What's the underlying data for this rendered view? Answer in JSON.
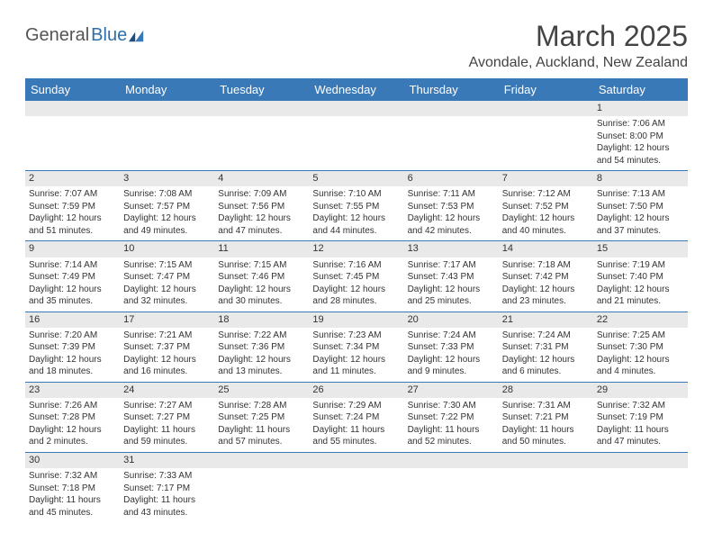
{
  "brand": {
    "part1": "General",
    "part2": "Blue"
  },
  "title": "March 2025",
  "location": "Avondale, Auckland, New Zealand",
  "colors": {
    "header_bg": "#3a79b7",
    "header_text": "#ffffff",
    "daynum_bg": "#e9e9e9",
    "row_border": "#3a79b7",
    "brand_blue": "#2f6fa8",
    "text": "#333333",
    "background": "#ffffff"
  },
  "typography": {
    "title_fontsize": 32,
    "location_fontsize": 16,
    "header_fontsize": 13,
    "daynum_fontsize": 11,
    "body_fontsize": 10
  },
  "weekdays": [
    "Sunday",
    "Monday",
    "Tuesday",
    "Wednesday",
    "Thursday",
    "Friday",
    "Saturday"
  ],
  "weeks": [
    [
      null,
      null,
      null,
      null,
      null,
      null,
      {
        "n": "1",
        "sunrise": "Sunrise: 7:06 AM",
        "sunset": "Sunset: 8:00 PM",
        "day1": "Daylight: 12 hours",
        "day2": "and 54 minutes."
      }
    ],
    [
      {
        "n": "2",
        "sunrise": "Sunrise: 7:07 AM",
        "sunset": "Sunset: 7:59 PM",
        "day1": "Daylight: 12 hours",
        "day2": "and 51 minutes."
      },
      {
        "n": "3",
        "sunrise": "Sunrise: 7:08 AM",
        "sunset": "Sunset: 7:57 PM",
        "day1": "Daylight: 12 hours",
        "day2": "and 49 minutes."
      },
      {
        "n": "4",
        "sunrise": "Sunrise: 7:09 AM",
        "sunset": "Sunset: 7:56 PM",
        "day1": "Daylight: 12 hours",
        "day2": "and 47 minutes."
      },
      {
        "n": "5",
        "sunrise": "Sunrise: 7:10 AM",
        "sunset": "Sunset: 7:55 PM",
        "day1": "Daylight: 12 hours",
        "day2": "and 44 minutes."
      },
      {
        "n": "6",
        "sunrise": "Sunrise: 7:11 AM",
        "sunset": "Sunset: 7:53 PM",
        "day1": "Daylight: 12 hours",
        "day2": "and 42 minutes."
      },
      {
        "n": "7",
        "sunrise": "Sunrise: 7:12 AM",
        "sunset": "Sunset: 7:52 PM",
        "day1": "Daylight: 12 hours",
        "day2": "and 40 minutes."
      },
      {
        "n": "8",
        "sunrise": "Sunrise: 7:13 AM",
        "sunset": "Sunset: 7:50 PM",
        "day1": "Daylight: 12 hours",
        "day2": "and 37 minutes."
      }
    ],
    [
      {
        "n": "9",
        "sunrise": "Sunrise: 7:14 AM",
        "sunset": "Sunset: 7:49 PM",
        "day1": "Daylight: 12 hours",
        "day2": "and 35 minutes."
      },
      {
        "n": "10",
        "sunrise": "Sunrise: 7:15 AM",
        "sunset": "Sunset: 7:47 PM",
        "day1": "Daylight: 12 hours",
        "day2": "and 32 minutes."
      },
      {
        "n": "11",
        "sunrise": "Sunrise: 7:15 AM",
        "sunset": "Sunset: 7:46 PM",
        "day1": "Daylight: 12 hours",
        "day2": "and 30 minutes."
      },
      {
        "n": "12",
        "sunrise": "Sunrise: 7:16 AM",
        "sunset": "Sunset: 7:45 PM",
        "day1": "Daylight: 12 hours",
        "day2": "and 28 minutes."
      },
      {
        "n": "13",
        "sunrise": "Sunrise: 7:17 AM",
        "sunset": "Sunset: 7:43 PM",
        "day1": "Daylight: 12 hours",
        "day2": "and 25 minutes."
      },
      {
        "n": "14",
        "sunrise": "Sunrise: 7:18 AM",
        "sunset": "Sunset: 7:42 PM",
        "day1": "Daylight: 12 hours",
        "day2": "and 23 minutes."
      },
      {
        "n": "15",
        "sunrise": "Sunrise: 7:19 AM",
        "sunset": "Sunset: 7:40 PM",
        "day1": "Daylight: 12 hours",
        "day2": "and 21 minutes."
      }
    ],
    [
      {
        "n": "16",
        "sunrise": "Sunrise: 7:20 AM",
        "sunset": "Sunset: 7:39 PM",
        "day1": "Daylight: 12 hours",
        "day2": "and 18 minutes."
      },
      {
        "n": "17",
        "sunrise": "Sunrise: 7:21 AM",
        "sunset": "Sunset: 7:37 PM",
        "day1": "Daylight: 12 hours",
        "day2": "and 16 minutes."
      },
      {
        "n": "18",
        "sunrise": "Sunrise: 7:22 AM",
        "sunset": "Sunset: 7:36 PM",
        "day1": "Daylight: 12 hours",
        "day2": "and 13 minutes."
      },
      {
        "n": "19",
        "sunrise": "Sunrise: 7:23 AM",
        "sunset": "Sunset: 7:34 PM",
        "day1": "Daylight: 12 hours",
        "day2": "and 11 minutes."
      },
      {
        "n": "20",
        "sunrise": "Sunrise: 7:24 AM",
        "sunset": "Sunset: 7:33 PM",
        "day1": "Daylight: 12 hours",
        "day2": "and 9 minutes."
      },
      {
        "n": "21",
        "sunrise": "Sunrise: 7:24 AM",
        "sunset": "Sunset: 7:31 PM",
        "day1": "Daylight: 12 hours",
        "day2": "and 6 minutes."
      },
      {
        "n": "22",
        "sunrise": "Sunrise: 7:25 AM",
        "sunset": "Sunset: 7:30 PM",
        "day1": "Daylight: 12 hours",
        "day2": "and 4 minutes."
      }
    ],
    [
      {
        "n": "23",
        "sunrise": "Sunrise: 7:26 AM",
        "sunset": "Sunset: 7:28 PM",
        "day1": "Daylight: 12 hours",
        "day2": "and 2 minutes."
      },
      {
        "n": "24",
        "sunrise": "Sunrise: 7:27 AM",
        "sunset": "Sunset: 7:27 PM",
        "day1": "Daylight: 11 hours",
        "day2": "and 59 minutes."
      },
      {
        "n": "25",
        "sunrise": "Sunrise: 7:28 AM",
        "sunset": "Sunset: 7:25 PM",
        "day1": "Daylight: 11 hours",
        "day2": "and 57 minutes."
      },
      {
        "n": "26",
        "sunrise": "Sunrise: 7:29 AM",
        "sunset": "Sunset: 7:24 PM",
        "day1": "Daylight: 11 hours",
        "day2": "and 55 minutes."
      },
      {
        "n": "27",
        "sunrise": "Sunrise: 7:30 AM",
        "sunset": "Sunset: 7:22 PM",
        "day1": "Daylight: 11 hours",
        "day2": "and 52 minutes."
      },
      {
        "n": "28",
        "sunrise": "Sunrise: 7:31 AM",
        "sunset": "Sunset: 7:21 PM",
        "day1": "Daylight: 11 hours",
        "day2": "and 50 minutes."
      },
      {
        "n": "29",
        "sunrise": "Sunrise: 7:32 AM",
        "sunset": "Sunset: 7:19 PM",
        "day1": "Daylight: 11 hours",
        "day2": "and 47 minutes."
      }
    ],
    [
      {
        "n": "30",
        "sunrise": "Sunrise: 7:32 AM",
        "sunset": "Sunset: 7:18 PM",
        "day1": "Daylight: 11 hours",
        "day2": "and 45 minutes."
      },
      {
        "n": "31",
        "sunrise": "Sunrise: 7:33 AM",
        "sunset": "Sunset: 7:17 PM",
        "day1": "Daylight: 11 hours",
        "day2": "and 43 minutes."
      },
      null,
      null,
      null,
      null,
      null
    ]
  ]
}
